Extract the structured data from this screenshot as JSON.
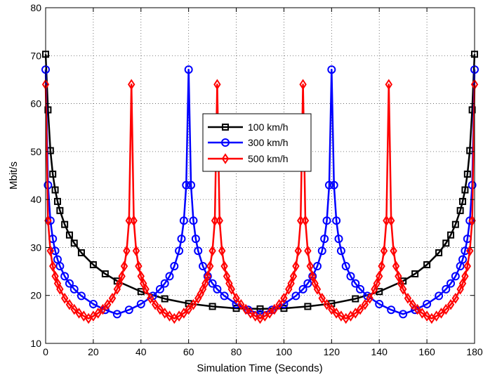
{
  "chart_data": {
    "type": "line",
    "xlabel": "Simulation Time (Seconds)",
    "ylabel": "Mbit/s",
    "xlim": [
      0,
      180
    ],
    "ylim": [
      10,
      80
    ],
    "x_ticks": [
      0,
      20,
      40,
      60,
      80,
      100,
      120,
      140,
      160,
      180
    ],
    "y_ticks": [
      10,
      20,
      30,
      40,
      50,
      60,
      70,
      80
    ],
    "x_tick_labels": [
      "0",
      "20",
      "40",
      "60",
      "80",
      "100",
      "120",
      "140",
      "160",
      "180"
    ],
    "y_tick_labels": [
      "10",
      "20",
      "30",
      "40",
      "50",
      "60",
      "70",
      "80"
    ],
    "grid": true,
    "legend_position": "upper-center",
    "series": [
      {
        "name": "100 km/h",
        "color": "#000000",
        "marker": "square",
        "x": [
          0,
          1,
          2,
          3,
          4,
          5,
          6,
          8,
          10,
          12,
          15,
          20,
          25,
          30,
          40,
          50,
          60,
          70,
          80,
          90,
          100,
          110,
          120,
          130,
          140,
          150,
          155,
          160,
          165,
          168,
          170,
          172,
          174,
          175,
          176,
          177,
          178,
          179,
          180
        ],
        "y": [
          70.3,
          58.7,
          50.2,
          45.3,
          42.0,
          39.6,
          37.7,
          34.8,
          32.6,
          30.9,
          28.9,
          26.4,
          24.5,
          23.0,
          20.8,
          19.3,
          18.3,
          17.7,
          17.3,
          17.2,
          17.3,
          17.7,
          18.3,
          19.3,
          20.8,
          23.0,
          24.5,
          26.4,
          28.9,
          30.9,
          32.6,
          34.8,
          37.7,
          39.6,
          42.0,
          45.3,
          50.2,
          58.7,
          70.3
        ]
      },
      {
        "name": "300 km/h",
        "color": "#0000ff",
        "marker": "circle",
        "x": [
          0,
          1,
          2,
          3,
          4,
          5,
          6,
          8,
          10,
          12,
          15,
          20,
          25,
          30,
          35,
          40,
          45,
          48,
          50,
          52,
          54,
          56,
          57,
          58,
          59,
          60,
          61,
          62,
          63,
          64,
          66,
          68,
          70,
          72,
          75,
          80,
          85,
          90,
          95,
          100,
          105,
          108,
          110,
          112,
          114,
          116,
          117,
          118,
          119,
          120,
          121,
          122,
          123,
          124,
          126,
          128,
          130,
          132,
          135,
          140,
          145,
          150,
          155,
          160,
          165,
          168,
          170,
          172,
          174,
          175,
          176,
          177,
          178,
          179,
          180
        ],
        "y": [
          67.1,
          43.0,
          35.6,
          31.8,
          29.3,
          27.5,
          26.1,
          24.0,
          22.5,
          21.3,
          19.9,
          18.2,
          17.0,
          16.1,
          17.0,
          18.2,
          19.9,
          21.3,
          22.5,
          24.0,
          26.1,
          29.3,
          31.8,
          35.6,
          43.0,
          67.1,
          43.0,
          35.6,
          31.8,
          29.3,
          26.1,
          24.0,
          22.5,
          21.3,
          19.9,
          18.2,
          17.0,
          16.1,
          17.0,
          18.2,
          19.9,
          21.3,
          22.5,
          24.0,
          26.1,
          29.3,
          31.8,
          35.6,
          43.0,
          67.1,
          43.0,
          35.6,
          31.8,
          29.3,
          26.1,
          24.0,
          22.5,
          21.3,
          19.9,
          18.2,
          17.0,
          16.1,
          17.0,
          18.2,
          19.9,
          21.3,
          22.5,
          24.0,
          26.1,
          27.5,
          29.3,
          31.8,
          35.6,
          43.0,
          67.1
        ]
      },
      {
        "name": "500 km/h",
        "color": "#ff0000",
        "marker": "diamond",
        "x": [
          0,
          1,
          2,
          3,
          4,
          5,
          6,
          8,
          10,
          12,
          14,
          16,
          18,
          20,
          22,
          24,
          26,
          28,
          30,
          31,
          32,
          33,
          34,
          35,
          36,
          37,
          38,
          39,
          40,
          41,
          42,
          44,
          46,
          48,
          50,
          52,
          54,
          56,
          58,
          60,
          62,
          64,
          65,
          66,
          67,
          68,
          69,
          70,
          71,
          72,
          73,
          74,
          75,
          76,
          77,
          78,
          80,
          82,
          84,
          86,
          88,
          90,
          92,
          94,
          96,
          98,
          100,
          102,
          103,
          104,
          105,
          106,
          107,
          108,
          109,
          110,
          111,
          112,
          113,
          114,
          116,
          118,
          120,
          122,
          124,
          126,
          128,
          130,
          132,
          134,
          136,
          138,
          139,
          140,
          141,
          142,
          143,
          144,
          145,
          146,
          147,
          148,
          149,
          150,
          152,
          154,
          156,
          158,
          160,
          162,
          164,
          166,
          168,
          170,
          172,
          174,
          175,
          176,
          177,
          178,
          179,
          180
        ],
        "y": [
          64.0,
          35.6,
          29.3,
          26.1,
          24.0,
          22.5,
          21.3,
          19.4,
          18.1,
          17.1,
          16.3,
          15.7,
          15.2,
          15.7,
          16.3,
          17.1,
          18.1,
          19.4,
          21.3,
          22.5,
          24.0,
          26.1,
          29.3,
          35.6,
          64.0,
          35.6,
          29.3,
          26.1,
          24.0,
          22.5,
          21.3,
          19.4,
          18.1,
          17.1,
          16.3,
          15.7,
          15.2,
          15.7,
          16.3,
          17.1,
          18.1,
          19.4,
          20.3,
          21.3,
          22.5,
          24.0,
          26.1,
          29.3,
          35.6,
          64.0,
          35.6,
          29.3,
          26.1,
          24.0,
          22.5,
          21.3,
          19.4,
          18.1,
          17.1,
          16.3,
          15.7,
          15.2,
          15.7,
          16.3,
          17.1,
          18.1,
          19.4,
          21.3,
          22.5,
          24.0,
          26.1,
          29.3,
          35.6,
          64.0,
          35.6,
          29.3,
          26.1,
          24.0,
          22.5,
          21.3,
          19.4,
          18.1,
          17.1,
          16.3,
          15.7,
          15.2,
          15.7,
          16.3,
          17.1,
          18.1,
          19.4,
          21.3,
          22.5,
          24.0,
          26.1,
          29.3,
          35.6,
          64.0,
          35.6,
          29.3,
          26.1,
          24.0,
          22.5,
          21.3,
          19.4,
          18.1,
          17.1,
          16.3,
          15.7,
          15.2,
          15.7,
          16.3,
          17.1,
          18.1,
          19.4,
          21.3,
          22.5,
          24.0,
          26.1,
          29.3,
          35.6,
          64.0
        ]
      }
    ]
  }
}
